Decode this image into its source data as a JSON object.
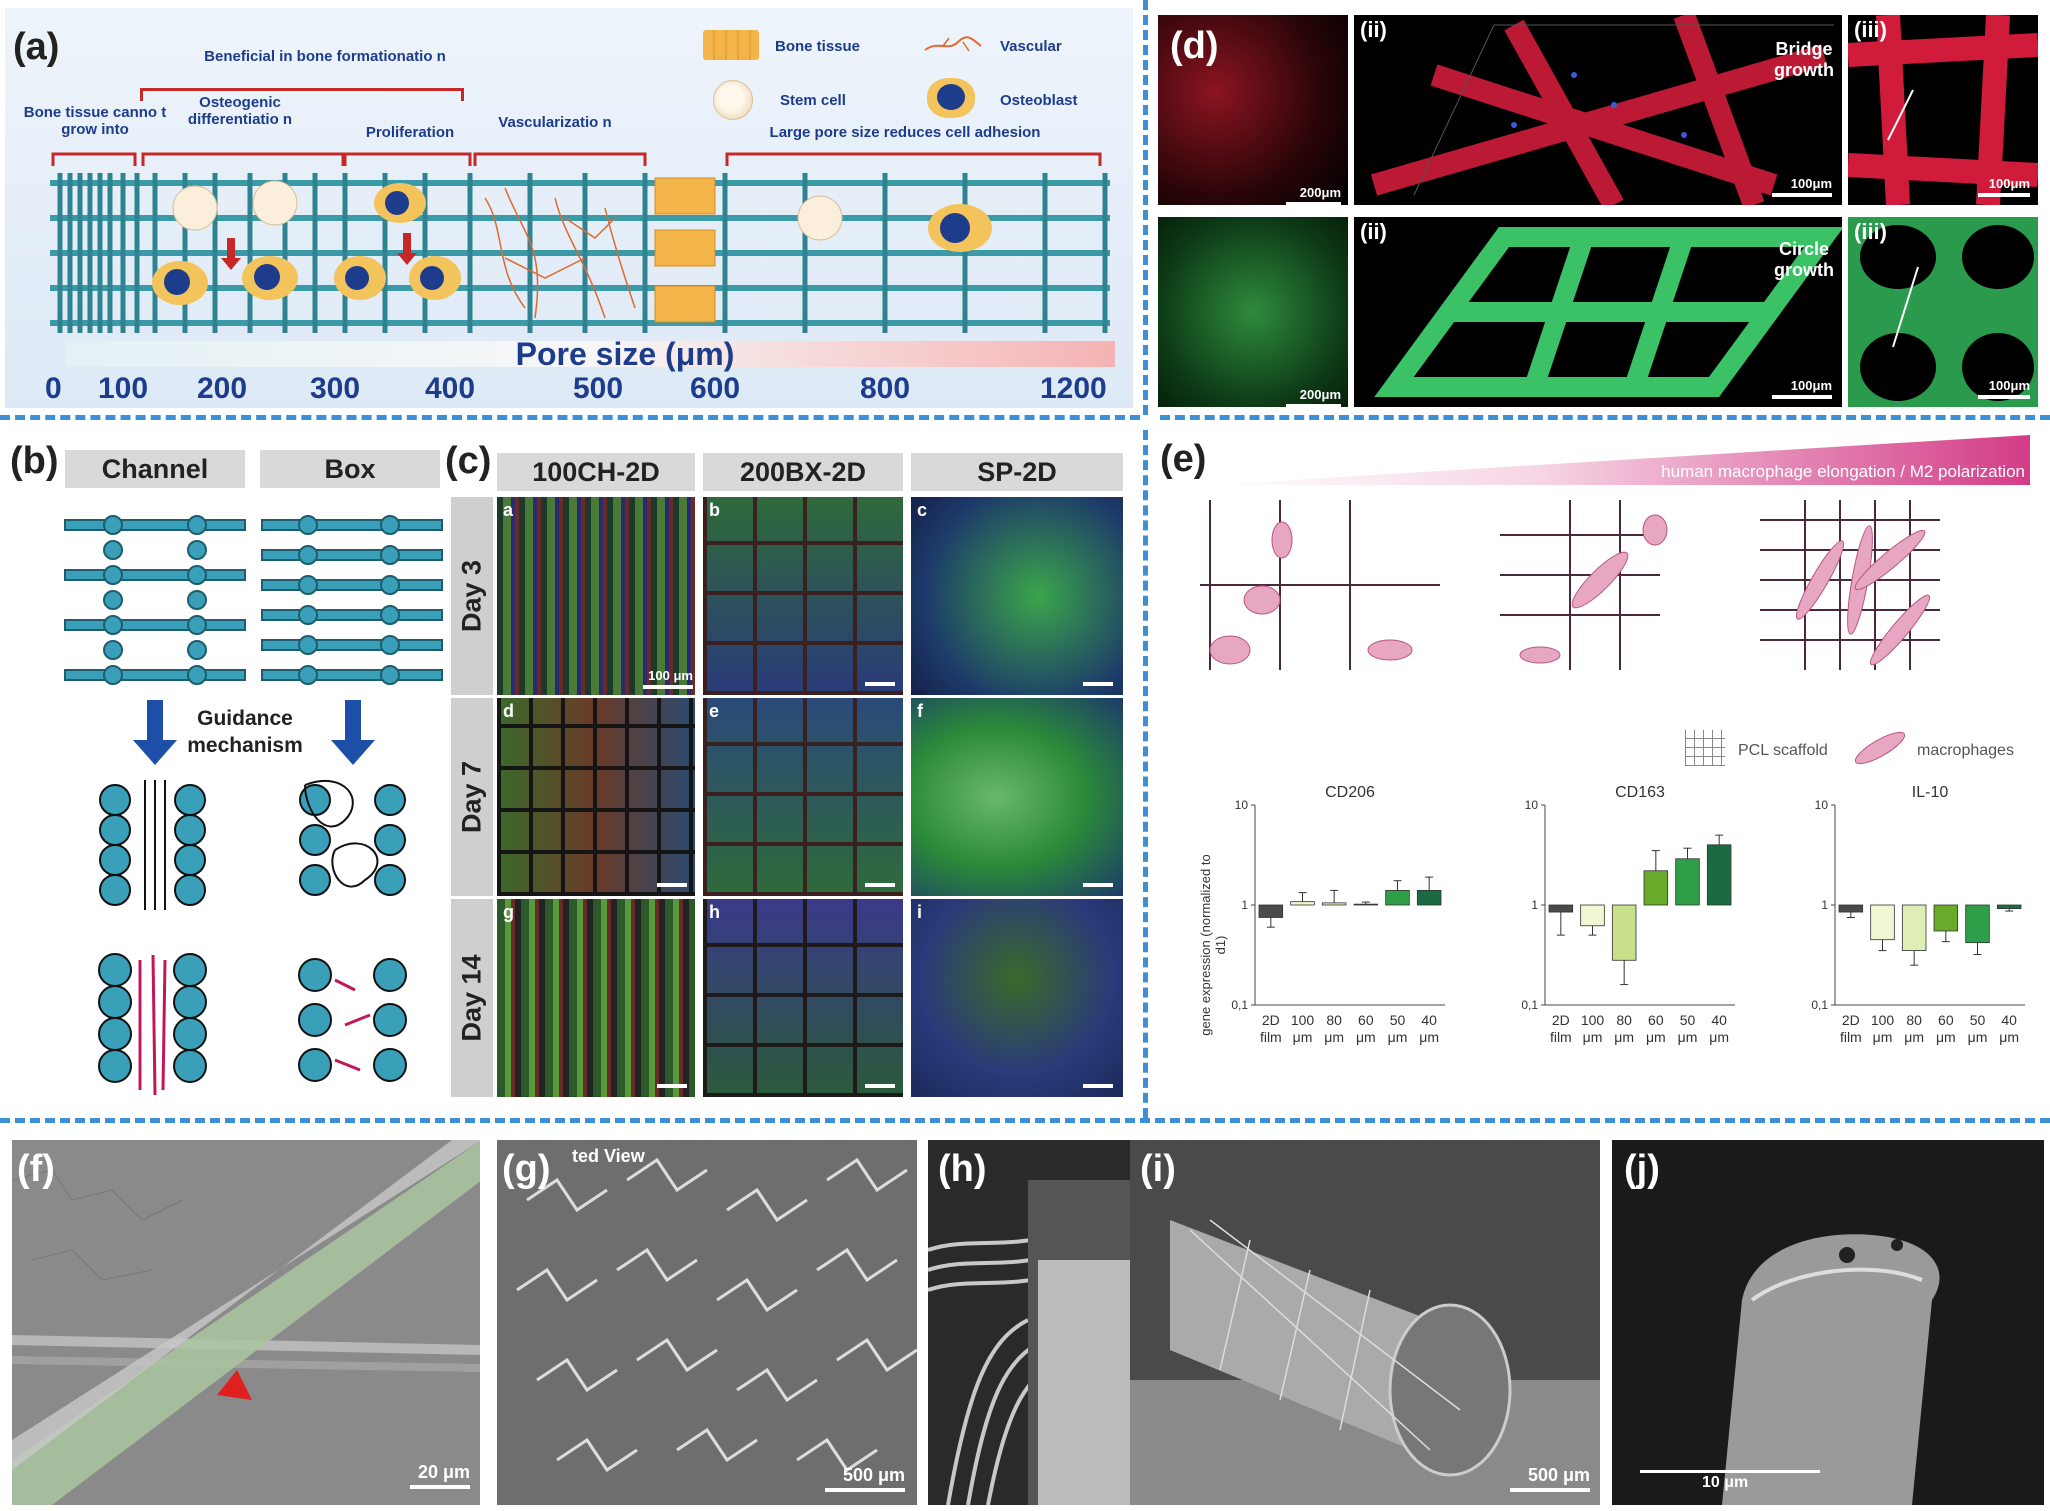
{
  "panels": {
    "a": {
      "label": "(a)",
      "annotations": {
        "beneficial": "Beneficial in bone formationatio n",
        "cannot_grow": "Bone tissue canno t grow into",
        "osteogenic": "Osteogenic differentiatio n",
        "proliferation": "Proliferation",
        "vascularization": "Vascularizatio n",
        "large_pore": "Large pore size reduces cell adhesion"
      },
      "legend": {
        "bone_tissue": "Bone tissue",
        "vascular": "Vascular",
        "stem_cell": "Stem cell",
        "osteoblast": "Osteoblast"
      },
      "axis_title": "Pore size (μm)",
      "ticks": [
        "0",
        "100",
        "200",
        "300",
        "400",
        "500",
        "600",
        "800",
        "1200"
      ]
    },
    "b": {
      "label": "(b)",
      "channel": "Channel",
      "box": "Box",
      "mechanism": "Guidance mechanism"
    },
    "c": {
      "label": "(c)",
      "columns": [
        "100CH-2D",
        "200BX-2D",
        "SP-2D"
      ],
      "rows": [
        "Day 3",
        "Day 7",
        "Day 14"
      ],
      "tiles": [
        "a",
        "b",
        "c",
        "d",
        "e",
        "f",
        "g",
        "h",
        "i"
      ],
      "scale": "100 μm"
    },
    "d": {
      "label": "(d)",
      "top": {
        "ii": "(ii)",
        "iii": "(iii)",
        "note": "Bridge growth",
        "s1": "200μm",
        "s2": "100μm",
        "s3": "100μm"
      },
      "bottom": {
        "ii": "(ii)",
        "iii": "(iii)",
        "note": "Circle growth",
        "s1": "200μm",
        "s2": "100μm",
        "s3": "100μm"
      }
    },
    "e": {
      "label": "(e)",
      "gradient_text": "human macrophage elongation / M2 polarization",
      "legend_scaffold": "PCL scaffold",
      "legend_macrophages": "macrophages",
      "ylabel": "gene expression (normalized to d1)"
    },
    "f": {
      "label": "(f)",
      "scale": "20 μm"
    },
    "g": {
      "label": "(g)",
      "overlay": "ted View",
      "scale": "500 μm"
    },
    "h": {
      "label": "(h)"
    },
    "i": {
      "label": "(i)",
      "scale": "500 μm"
    },
    "j": {
      "label": "(j)",
      "scale": "10 μm"
    }
  },
  "chart_data": [
    {
      "type": "bar",
      "title": "CD206",
      "categories": [
        "2D film",
        "100 μm",
        "80 μm",
        "60 μm",
        "50 μm",
        "40 μm"
      ],
      "values": [
        0.75,
        1.08,
        1.05,
        1.02,
        1.4,
        1.4
      ],
      "errors": [
        0.15,
        0.25,
        0.35,
        0.05,
        0.35,
        0.5
      ],
      "colors": [
        "#4a4a4a",
        "#f0f7d2",
        "#dfeeb6",
        "#8fc34a",
        "#2e9e48",
        "#1a6b44"
      ],
      "yscale": "log",
      "ylim": [
        0.1,
        10
      ],
      "yticks": [
        "0,1",
        "1",
        "10"
      ],
      "ylabel": "gene expression (normalized to d1)"
    },
    {
      "type": "bar",
      "title": "CD163",
      "categories": [
        "2D film",
        "100 μm",
        "80 μm",
        "60 μm",
        "50 μm",
        "40 μm"
      ],
      "values": [
        0.85,
        0.62,
        0.28,
        2.2,
        2.9,
        4.0
      ],
      "errors": [
        0.35,
        0.12,
        0.12,
        1.3,
        0.8,
        1.0
      ],
      "colors": [
        "#4a4a4a",
        "#f0f7d2",
        "#c9e08a",
        "#6aaa2a",
        "#2e9e48",
        "#1a6b44"
      ],
      "yscale": "log",
      "ylim": [
        0.1,
        10
      ],
      "yticks": [
        "0,1",
        "1",
        "10"
      ]
    },
    {
      "type": "bar",
      "title": "IL-10",
      "categories": [
        "2D film",
        "100 μm",
        "80 μm",
        "60 μm",
        "50 μm",
        "40 μm"
      ],
      "values": [
        0.85,
        0.45,
        0.35,
        0.55,
        0.42,
        0.92
      ],
      "errors": [
        0.1,
        0.1,
        0.1,
        0.12,
        0.1,
        0.05
      ],
      "colors": [
        "#4a4a4a",
        "#f0f7d2",
        "#dfeeb6",
        "#6aaa2a",
        "#2e9e48",
        "#1a6b44"
      ],
      "yscale": "log",
      "ylim": [
        0.1,
        10
      ],
      "yticks": [
        "0,1",
        "1",
        "10"
      ]
    }
  ]
}
